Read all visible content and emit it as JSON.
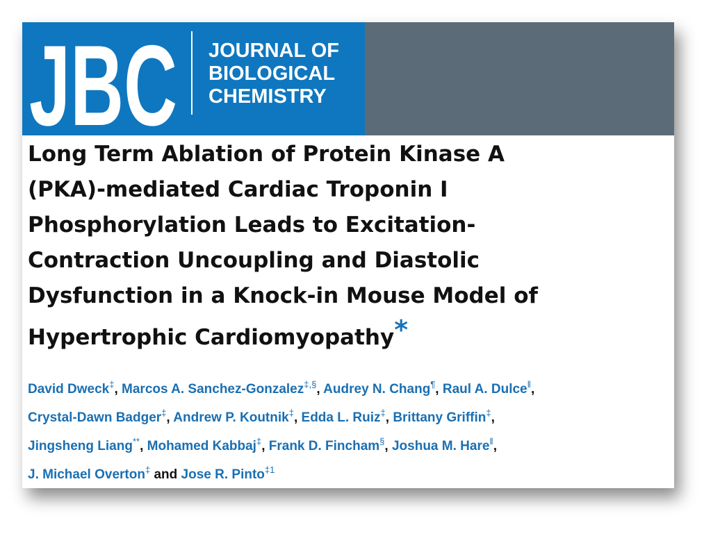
{
  "header": {
    "logo": "JBC",
    "journal_name": [
      "JOURNAL OF",
      "BIOLOGICAL",
      "CHEMISTRY"
    ]
  },
  "title": {
    "lines": [
      "Long Term Ablation of Protein Kinase A",
      "(PKA)-mediated Cardiac Troponin I",
      "Phosphorylation Leads to Excitation-",
      "Contraction Uncoupling and Diastolic",
      "Dysfunction in a Knock-in Mouse Model of",
      "Hypertrophic Cardiomyopathy"
    ],
    "footnote_mark": "*"
  },
  "author_lines": [
    [
      {
        "name": "David Dweck",
        "marks": "‡",
        "after": ","
      },
      {
        "name": "Marcos A. Sanchez-Gonzalez",
        "marks": "‡,§",
        "after": ","
      },
      {
        "name": "Audrey N. Chang",
        "marks": "¶",
        "after": ","
      },
      {
        "name": "Raul A. Dulce",
        "marks": "‖",
        "after": ","
      }
    ],
    [
      {
        "name": "Crystal-Dawn Badger",
        "marks": "‡",
        "after": ","
      },
      {
        "name": "Andrew P. Koutnik",
        "marks": "‡",
        "after": ","
      },
      {
        "name": "Edda L. Ruiz",
        "marks": "‡",
        "after": ","
      },
      {
        "name": "Brittany Griffin",
        "marks": "‡",
        "after": ","
      }
    ],
    [
      {
        "name": "Jingsheng Liang",
        "marks": "**",
        "after": ","
      },
      {
        "name": "Mohamed Kabbaj",
        "marks": "‡",
        "after": ","
      },
      {
        "name": "Frank D. Fincham",
        "marks": "§",
        "after": ","
      },
      {
        "name": "Joshua M. Hare",
        "marks": "‖",
        "after": ","
      }
    ],
    [
      {
        "name": "J. Michael Overton",
        "marks": "‡",
        "after": "and"
      },
      {
        "name": "Jose R. Pinto",
        "marks": "‡1"
      }
    ]
  ]
}
